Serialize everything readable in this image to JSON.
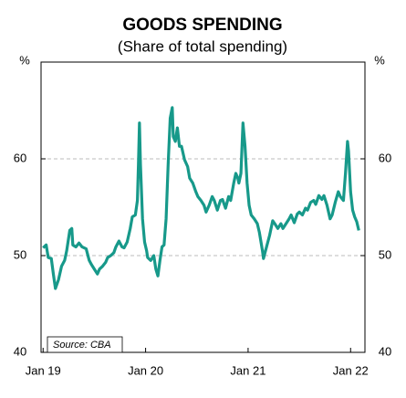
{
  "chart_data": {
    "type": "line",
    "title": "GOODS SPENDING",
    "subtitle": "(Share of total spending)",
    "ylabel": "%",
    "y2label": "%",
    "annotation": "Source: CBA",
    "xlim": [
      2018.98,
      2022.14
    ],
    "xticks": [
      {
        "value": 2019,
        "label": "Jan 19"
      },
      {
        "value": 2020,
        "label": "Jan 20"
      },
      {
        "value": 2021,
        "label": "Jan 21"
      },
      {
        "value": 2022,
        "label": "Jan 22"
      }
    ],
    "ylim": [
      40,
      70
    ],
    "yticks": [
      40,
      50,
      60
    ],
    "y2lim": [
      40,
      70
    ],
    "y2ticks": [
      40,
      50,
      60
    ],
    "grid": true,
    "x": [
      2019.0,
      2019.03,
      2019.05,
      2019.08,
      2019.1,
      2019.12,
      2019.15,
      2019.18,
      2019.21,
      2019.23,
      2019.26,
      2019.28,
      2019.29,
      2019.32,
      2019.35,
      2019.38,
      2019.42,
      2019.45,
      2019.47,
      2019.5,
      2019.53,
      2019.55,
      2019.58,
      2019.61,
      2019.63,
      2019.66,
      2019.69,
      2019.71,
      2019.74,
      2019.77,
      2019.79,
      2019.82,
      2019.85,
      2019.87,
      2019.9,
      2019.92,
      2019.93,
      2019.94,
      2019.95,
      2019.97,
      2019.99,
      2020.01,
      2020.02,
      2020.05,
      2020.08,
      2020.1,
      2020.12,
      2020.14,
      2020.16,
      2020.18,
      2020.2,
      2020.22,
      2020.24,
      2020.26,
      2020.27,
      2020.29,
      2020.31,
      2020.33,
      2020.35,
      2020.38,
      2020.41,
      2020.43,
      2020.46,
      2020.49,
      2020.51,
      2020.54,
      2020.57,
      2020.59,
      2020.62,
      2020.65,
      2020.67,
      2020.7,
      2020.73,
      2020.75,
      2020.78,
      2020.81,
      2020.83,
      2020.86,
      2020.88,
      2020.9,
      2020.91,
      2020.93,
      2020.95,
      2020.97,
      2020.99,
      2021.01,
      2021.03,
      2021.06,
      2021.09,
      2021.11,
      2021.14,
      2021.15,
      2021.18,
      2021.21,
      2021.24,
      2021.26,
      2021.29,
      2021.32,
      2021.34,
      2021.37,
      2021.4,
      2021.42,
      2021.45,
      2021.48,
      2021.5,
      2021.53,
      2021.56,
      2021.58,
      2021.61,
      2021.64,
      2021.66,
      2021.69,
      2021.72,
      2021.74,
      2021.77,
      2021.8,
      2021.82,
      2021.85,
      2021.88,
      2021.9,
      2021.93,
      2021.95,
      2021.97,
      2021.98,
      2022.0,
      2022.02,
      2022.04,
      2022.06,
      2022.08
    ],
    "series": [
      {
        "name": "Goods spending",
        "color": "#17998a",
        "values": [
          50.8,
          51.1,
          49.8,
          49.7,
          48.1,
          46.6,
          47.5,
          48.9,
          49.5,
          50.5,
          52.6,
          52.8,
          51.1,
          50.9,
          51.3,
          50.9,
          50.7,
          49.5,
          49.1,
          48.6,
          48.1,
          48.6,
          48.9,
          49.3,
          49.8,
          50.0,
          50.3,
          50.9,
          51.5,
          50.9,
          50.8,
          51.4,
          52.8,
          54.0,
          54.2,
          55.7,
          59.4,
          63.7,
          59.4,
          53.8,
          51.4,
          50.5,
          49.8,
          49.5,
          50.0,
          48.6,
          47.9,
          49.5,
          50.9,
          51.1,
          53.8,
          59.4,
          64.2,
          65.3,
          62.3,
          61.8,
          63.2,
          61.3,
          61.3,
          59.9,
          59.2,
          58.0,
          57.5,
          56.6,
          56.1,
          55.7,
          55.2,
          54.5,
          55.2,
          56.1,
          55.7,
          54.7,
          55.7,
          55.8,
          54.9,
          56.1,
          55.7,
          57.5,
          58.5,
          58.0,
          57.5,
          58.5,
          63.7,
          61.3,
          57.5,
          55.2,
          54.2,
          53.8,
          53.3,
          52.4,
          50.5,
          49.7,
          50.9,
          52.1,
          53.6,
          53.3,
          52.8,
          53.3,
          52.8,
          53.3,
          53.8,
          54.2,
          53.4,
          54.3,
          54.5,
          54.2,
          54.9,
          54.7,
          55.5,
          55.7,
          55.3,
          56.2,
          55.8,
          56.2,
          55.2,
          53.8,
          54.2,
          55.5,
          56.6,
          56.1,
          55.7,
          58.5,
          61.8,
          60.8,
          56.6,
          54.7,
          54.0,
          53.5,
          52.6
        ]
      }
    ]
  }
}
